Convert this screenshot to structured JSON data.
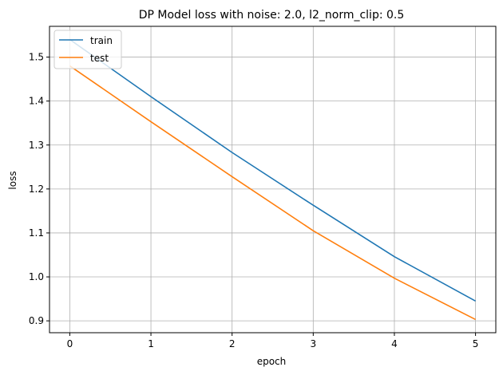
{
  "chart_data": {
    "type": "line",
    "title": "DP Model loss with noise: 2.0, l2_norm_clip: 0.5",
    "xlabel": "epoch",
    "ylabel": "loss",
    "x": [
      0,
      1,
      2,
      3,
      4,
      5
    ],
    "xlim": [
      -0.25,
      5.25
    ],
    "ylim": [
      0.873,
      1.57
    ],
    "xticks": [
      0,
      1,
      2,
      3,
      4,
      5
    ],
    "yticks": [
      0.9,
      1.0,
      1.1,
      1.2,
      1.3,
      1.4,
      1.5
    ],
    "ytick_labels": [
      "0.9",
      "1.0",
      "1.1",
      "1.2",
      "1.3",
      "1.4",
      "1.5"
    ],
    "grid": true,
    "legend_position": "upper left",
    "series": [
      {
        "name": "train",
        "color": "#1f77b4",
        "values": [
          1.54,
          1.41,
          1.283,
          1.163,
          1.046,
          0.945
        ]
      },
      {
        "name": "test",
        "color": "#ff7f0e",
        "values": [
          1.48,
          1.353,
          1.228,
          1.105,
          0.997,
          0.903
        ]
      }
    ]
  }
}
